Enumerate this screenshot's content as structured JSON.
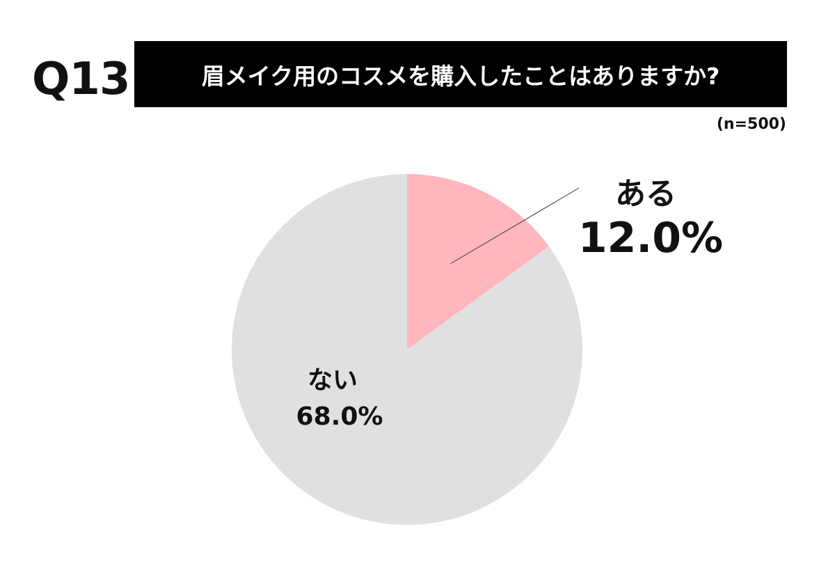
{
  "header": {
    "question_number": "Q13",
    "question": "眉メイク用のコスメを購入したことはありますか?",
    "sample_size": "(n=500)"
  },
  "chart_data": {
    "type": "pie",
    "slices": [
      {
        "label": "ある",
        "value": 12.0,
        "display": "12.0%",
        "color": "#ffb6bc"
      },
      {
        "label": "ない",
        "value": 68.0,
        "display": "68.0%",
        "color": "#e0dfe1"
      }
    ],
    "start_angle_deg": 0,
    "direction": "clockwise"
  }
}
